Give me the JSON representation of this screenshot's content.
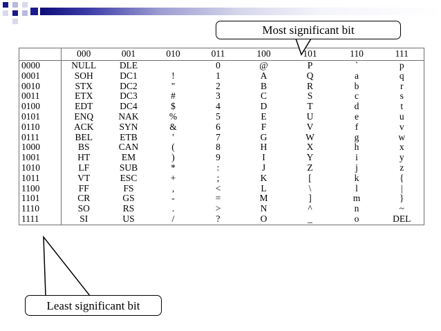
{
  "callouts": {
    "msb": "Most significant bit",
    "lsb": "Least significant bit"
  },
  "table": {
    "columns": [
      "000",
      "001",
      "010",
      "011",
      "100",
      "101",
      "110",
      "111"
    ],
    "rows": [
      {
        "bits": "0000",
        "cells": [
          "NULL",
          "DLE",
          "",
          "0",
          "@",
          "P",
          "`",
          "p"
        ]
      },
      {
        "bits": "0001",
        "cells": [
          "SOH",
          "DC1",
          "!",
          "1",
          "A",
          "Q",
          "a",
          "q"
        ]
      },
      {
        "bits": "0010",
        "cells": [
          "STX",
          "DC2",
          "\"",
          "2",
          "B",
          "R",
          "b",
          "r"
        ]
      },
      {
        "bits": "0011",
        "cells": [
          "ETX",
          "DC3",
          "#",
          "3",
          "C",
          "S",
          "c",
          "s"
        ]
      },
      {
        "bits": "0100",
        "cells": [
          "EDT",
          "DC4",
          "$",
          "4",
          "D",
          "T",
          "d",
          "t"
        ]
      },
      {
        "bits": "0101",
        "cells": [
          "ENQ",
          "NAK",
          "%",
          "5",
          "E",
          "U",
          "e",
          "u"
        ]
      },
      {
        "bits": "0110",
        "cells": [
          "ACK",
          "SYN",
          "&",
          "6",
          "F",
          "V",
          "f",
          "v"
        ]
      },
      {
        "bits": "0111",
        "cells": [
          "BEL",
          "ETB",
          "'",
          "7",
          "G",
          "W",
          "g",
          "w"
        ]
      },
      {
        "bits": "1000",
        "cells": [
          "BS",
          "CAN",
          "(",
          "8",
          "H",
          "X",
          "h",
          "x"
        ]
      },
      {
        "bits": "1001",
        "cells": [
          "HT",
          "EM",
          ")",
          "9",
          "I",
          "Y",
          "i",
          "y"
        ]
      },
      {
        "bits": "1010",
        "cells": [
          "LF",
          "SUB",
          "*",
          ":",
          "J",
          "Z",
          "j",
          "z"
        ]
      },
      {
        "bits": "1011",
        "cells": [
          "VT",
          "ESC",
          "+",
          ";",
          "K",
          "[",
          "k",
          "{"
        ]
      },
      {
        "bits": "1100",
        "cells": [
          "FF",
          "FS",
          ",",
          "<",
          "L",
          "\\",
          "l",
          "|"
        ]
      },
      {
        "bits": "1101",
        "cells": [
          "CR",
          "GS",
          "-",
          "=",
          "M",
          "]",
          "m",
          "}"
        ]
      },
      {
        "bits": "1110",
        "cells": [
          "SO",
          "RS",
          ".",
          ">",
          "N",
          "^",
          "n",
          "~"
        ]
      },
      {
        "bits": "1111",
        "cells": [
          "SI",
          "US",
          "/",
          "?",
          "O",
          "_",
          "o",
          "DEL"
        ]
      }
    ]
  },
  "colors": {
    "header_band_dark": "#0d0d7a",
    "header_squares": "#1a1a8c",
    "grid_line": "#6e6e6e"
  }
}
